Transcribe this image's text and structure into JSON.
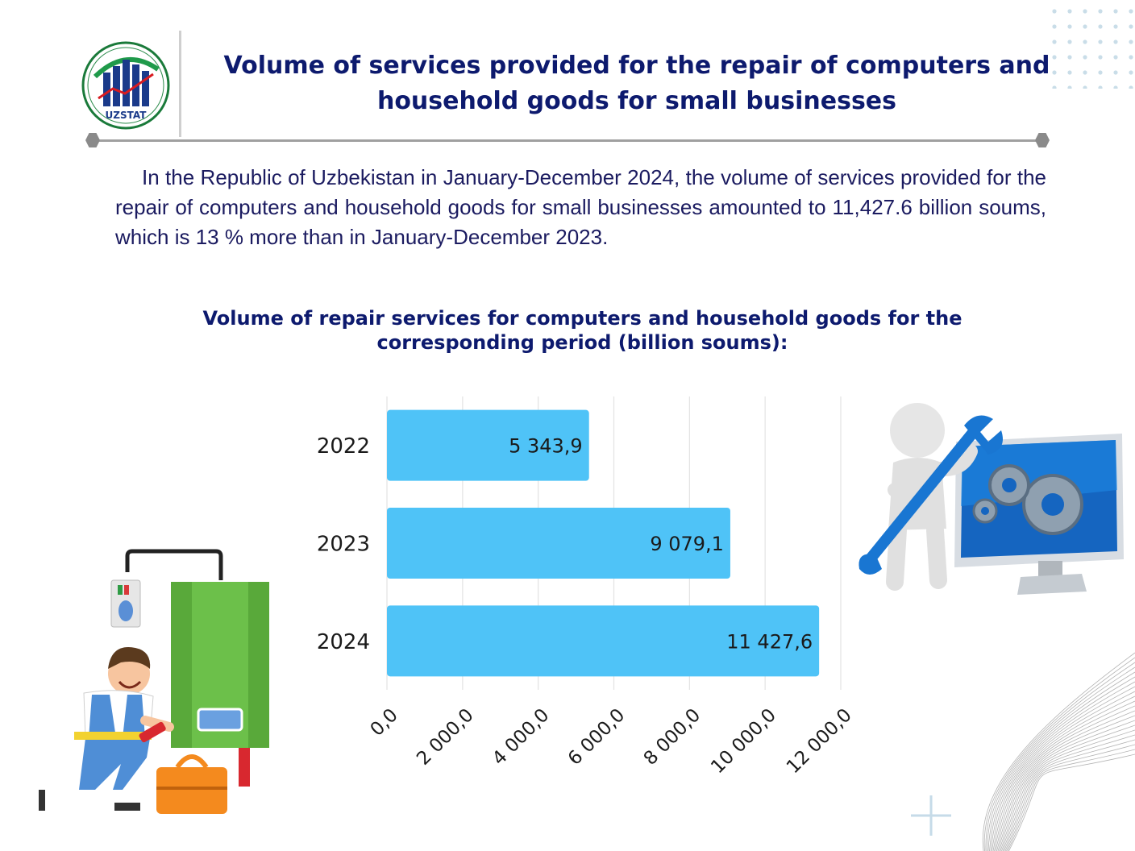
{
  "header": {
    "logo_text": "UZSTAT",
    "title_line1": "Volume of services provided for the repair of computers and",
    "title_line2": "household goods for small businesses"
  },
  "paragraph": "In the Republic of Uzbekistan in January-December 2024, the volume of services provided for the repair of computers and household goods for small businesses amounted to 11,427.6 billion soums, which is 13 % more than in January-December 2023.",
  "chart_title_line1": "Volume of repair services for computers and household goods for the",
  "chart_title_line2": "corresponding period (billion soums):",
  "colors": {
    "title": "#0d1a6e",
    "bar": "#4fc3f7",
    "grid": "#e3e3e3"
  },
  "chart_data": {
    "type": "bar",
    "orientation": "horizontal",
    "categories": [
      "2022",
      "2023",
      "2024"
    ],
    "values": [
      5343.9,
      9079.1,
      11427.6
    ],
    "value_labels": [
      "5 343,9",
      "9 079,1",
      "11 427,6"
    ],
    "xlim": [
      0,
      12000
    ],
    "x_ticks": [
      0,
      2000,
      4000,
      6000,
      8000,
      10000,
      12000
    ],
    "x_tick_labels": [
      "0,0",
      "2 000,0",
      "4 000,0",
      "6 000,0",
      "8 000,0",
      "10 000,0",
      "12 000,0"
    ],
    "grid": true,
    "legend": "none"
  }
}
